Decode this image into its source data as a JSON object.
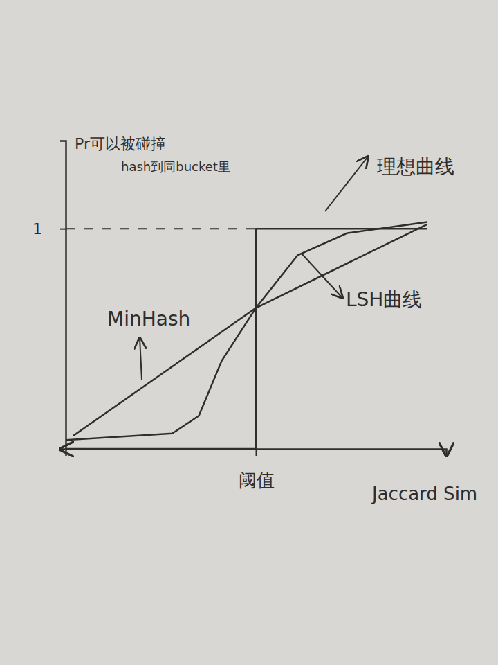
{
  "chart_data": {
    "type": "line",
    "ylabel": [
      "Pr可以被碰撞",
      "hash到同bucket里"
    ],
    "xlabel": "Jaccard Sim",
    "xlim": [
      0,
      1
    ],
    "ylim": [
      0,
      1.4
    ],
    "xticks": [
      {
        "value": 0.5,
        "label": "阈值"
      }
    ],
    "yticks": [
      1
    ],
    "series": [
      {
        "name": "理想曲线",
        "color": "#2e2e2e",
        "line_style": "solid",
        "x": [
          0,
          0.5,
          0.5,
          0.95
        ],
        "values": [
          0,
          0,
          1,
          1
        ]
      },
      {
        "name": "LSH曲线",
        "color": "#2e2e2e",
        "line_style": "solid",
        "x": [
          0,
          0.28,
          0.35,
          0.41,
          0.5,
          0.61,
          0.74,
          0.95
        ],
        "values": [
          0.04,
          0.07,
          0.15,
          0.4,
          0.64,
          0.88,
          0.98,
          1.03
        ]
      },
      {
        "name": "MinHash",
        "color": "#2e2e2e",
        "line_style": "solid",
        "x": [
          0.02,
          0.5,
          0.95
        ],
        "values": [
          0.06,
          0.64,
          1.02
        ]
      }
    ]
  }
}
